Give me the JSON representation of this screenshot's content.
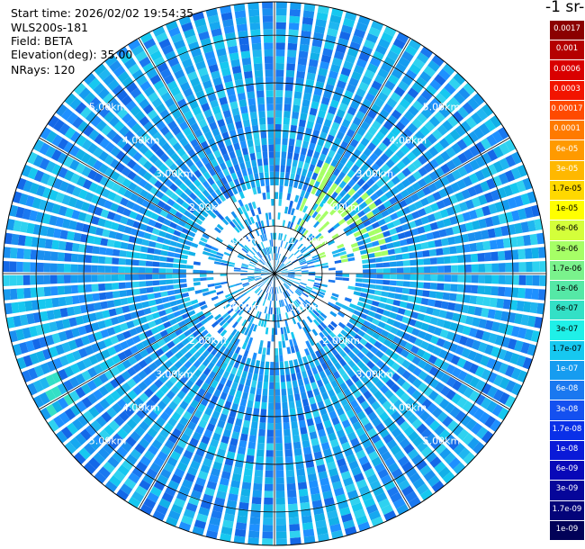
{
  "header": {
    "start_time": "Start time: 2026/02/02 19:54:35",
    "instrument": "WLS200s-181",
    "field": "Field: BETA",
    "elevation": "Elevation(deg): 35.00",
    "nrays": "NRays: 120"
  },
  "colorbar": {
    "title": "-1 sr-",
    "labels": [
      "0.0017",
      "0.001",
      "0.0006",
      "0.0003",
      "0.00017",
      "0.0001",
      "6e-05",
      "3e-05",
      "1.7e-05",
      "1e-05",
      "6e-06",
      "3e-06",
      "1.7e-06",
      "1e-06",
      "6e-07",
      "3e-07",
      "1.7e-07",
      "1e-07",
      "6e-08",
      "3e-08",
      "1.7e-08",
      "1e-08",
      "6e-09",
      "3e-09",
      "1.7e-09",
      "1e-09"
    ],
    "colors": [
      "#8b0000",
      "#b50000",
      "#d90000",
      "#f21400",
      "#ff4a00",
      "#ff7a00",
      "#ff9a00",
      "#ffb800",
      "#ffd800",
      "#ffff00",
      "#d4ff3a",
      "#a6ff66",
      "#7af28c",
      "#55e8a6",
      "#33e0c6",
      "#1ff0e8",
      "#16c8f0",
      "#169cf0",
      "#1a78f0",
      "#1450f0",
      "#0a30e8",
      "#0a1ad8",
      "#0808b8",
      "#06069a",
      "#04047a",
      "#020258"
    ]
  },
  "chart_data": {
    "type": "heatmap",
    "projection": "polar (PPI scan)",
    "field": "BETA",
    "elevation_deg": 35.0,
    "nrays": 120,
    "range_ring_labels": [
      "1.00km",
      "2.00km",
      "3.00km",
      "4.00km",
      "5.00km"
    ],
    "range_rings_km": [
      1,
      2,
      3,
      4,
      5
    ],
    "max_range_km": 5.7,
    "colorscale": "log, 1e-09 to 0.0017",
    "dominant_value_range": [
      1e-08,
      3e-07
    ],
    "features": [
      {
        "description": "aerosol patches",
        "range_km": [
          1.0,
          2.5
        ],
        "azimuth_deg": [
          20,
          80
        ],
        "approx_value": 3e-06
      },
      {
        "description": "enhanced backscatter",
        "range_km": [
          4.8,
          5.6
        ],
        "azimuth_deg": [
          235,
          245
        ],
        "approx_value": 3e-07
      }
    ]
  }
}
